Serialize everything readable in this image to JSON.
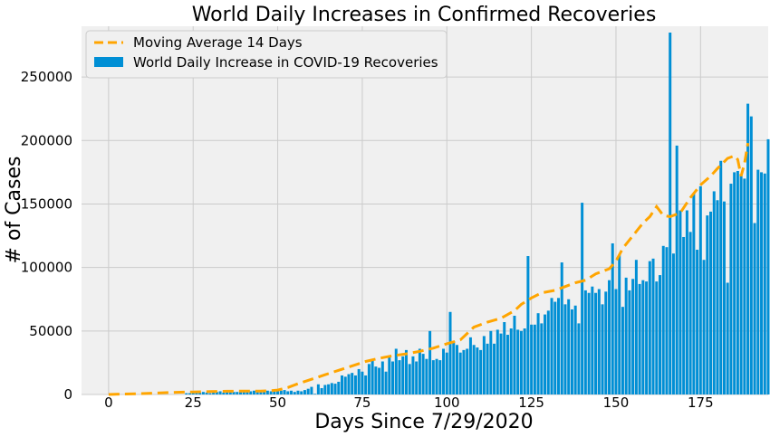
{
  "chart_data": {
    "type": "bar",
    "title": "World Daily Increases in Confirmed Recoveries",
    "xlabel": "Days Since 7/29/2020",
    "ylabel": "# of Cases",
    "xlim": [
      -8,
      195
    ],
    "ylim": [
      0,
      290000
    ],
    "x_ticks": [
      0,
      25,
      50,
      75,
      100,
      125,
      150,
      175
    ],
    "y_ticks": [
      0,
      50000,
      100000,
      150000,
      200000,
      250000
    ],
    "grid": true,
    "legend_position": "upper-left",
    "colors": {
      "bars": "#008fd5",
      "moving_average": "#ffa500",
      "background": "#f0f0f0",
      "grid": "#cbcbcb"
    },
    "series": [
      {
        "name": "World Daily Increase in COVID-19 Recoveries",
        "kind": "bar",
        "x_start": 0,
        "values": [
          0,
          0,
          0,
          0,
          0,
          0,
          0,
          0,
          0,
          0,
          0,
          0,
          0,
          0,
          0,
          0,
          0,
          0,
          0,
          0,
          0,
          0,
          0,
          1000,
          1000,
          1500,
          1500,
          1500,
          2000,
          1500,
          1000,
          3000,
          2000,
          2500,
          1500,
          2000,
          2500,
          2000,
          2000,
          2500,
          2000,
          2500,
          2500,
          3000,
          2000,
          3000,
          2500,
          3000,
          2500,
          3000,
          2500,
          3000,
          3500,
          2500,
          3000,
          2000,
          3000,
          2500,
          3500,
          4500,
          6000,
          500,
          8000,
          5000,
          7500,
          8000,
          9000,
          8500,
          10000,
          15000,
          14000,
          16000,
          17000,
          15000,
          20000,
          18000,
          15000,
          24000,
          28000,
          22000,
          21000,
          26000,
          18000,
          30000,
          26000,
          36000,
          27000,
          30000,
          35000,
          24000,
          30000,
          26000,
          36000,
          32000,
          28000,
          50000,
          27000,
          28000,
          27000,
          36000,
          33000,
          65000,
          42000,
          39000,
          33000,
          35000,
          36000,
          45000,
          39000,
          37000,
          35000,
          46000,
          40000,
          50000,
          40000,
          51000,
          48000,
          57000,
          47000,
          52000,
          62000,
          51000,
          50000,
          52000,
          109000,
          55000,
          55000,
          64000,
          56000,
          63000,
          66000,
          76000,
          73000,
          76000,
          104000,
          71000,
          75000,
          67000,
          70000,
          56000,
          151000,
          82000,
          80000,
          85000,
          80000,
          83000,
          71000,
          81000,
          90000,
          119000,
          83000,
          110000,
          69000,
          92000,
          82000,
          91000,
          106000,
          87000,
          90000,
          89000,
          105000,
          107000,
          89000,
          94000,
          117000,
          116000,
          285000,
          111000,
          196000,
          145000,
          124000,
          145000,
          128000,
          158000,
          114000,
          164000,
          106000,
          141000,
          144000,
          160000,
          153000,
          184000,
          152000,
          88000,
          166000,
          175000,
          176000,
          173000,
          170000,
          229000,
          219000,
          135000,
          177000,
          175000,
          174000,
          201000
        ]
      },
      {
        "name": "Moving Average 14 Days",
        "kind": "line",
        "style": "dashed",
        "points": [
          [
            0,
            0
          ],
          [
            10,
            700
          ],
          [
            20,
            1700
          ],
          [
            25,
            2000
          ],
          [
            30,
            2300
          ],
          [
            35,
            2600
          ],
          [
            40,
            2700
          ],
          [
            45,
            2700
          ],
          [
            48,
            3000
          ],
          [
            50,
            3500
          ],
          [
            53,
            5500
          ],
          [
            56,
            8500
          ],
          [
            60,
            12000
          ],
          [
            64,
            15500
          ],
          [
            68,
            19000
          ],
          [
            72,
            22500
          ],
          [
            76,
            26000
          ],
          [
            80,
            28500
          ],
          [
            84,
            30500
          ],
          [
            88,
            32000
          ],
          [
            92,
            34000
          ],
          [
            96,
            36500
          ],
          [
            100,
            40000
          ],
          [
            104,
            43000
          ],
          [
            108,
            53000
          ],
          [
            112,
            57000
          ],
          [
            116,
            60000
          ],
          [
            120,
            66000
          ],
          [
            122,
            71000
          ],
          [
            125,
            76000
          ],
          [
            128,
            80000
          ],
          [
            132,
            82000
          ],
          [
            135,
            85000
          ],
          [
            138,
            88000
          ],
          [
            141,
            90000
          ],
          [
            144,
            95000
          ],
          [
            148,
            99000
          ],
          [
            150,
            105000
          ],
          [
            152,
            115000
          ],
          [
            155,
            125000
          ],
          [
            158,
            135000
          ],
          [
            160,
            140000
          ],
          [
            162,
            148000
          ],
          [
            164,
            141000
          ],
          [
            166,
            140000
          ],
          [
            169,
            143000
          ],
          [
            172,
            155000
          ],
          [
            175,
            165000
          ],
          [
            178,
            172000
          ],
          [
            180,
            178000
          ],
          [
            183,
            186000
          ],
          [
            185,
            188000
          ],
          [
            186,
            185000
          ],
          [
            187,
            172000
          ],
          [
            188,
            182000
          ],
          [
            189,
            198000
          ]
        ]
      }
    ]
  }
}
